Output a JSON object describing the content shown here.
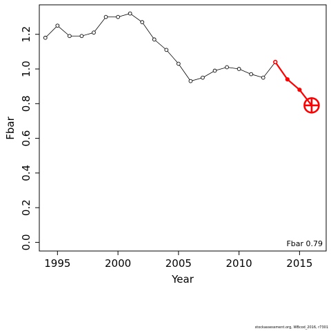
{
  "chart_data": {
    "type": "line",
    "title": "",
    "xlabel": "Year",
    "ylabel": "Fbar",
    "xlim": [
      1993.5,
      2017.2
    ],
    "ylim": [
      -0.05,
      1.37
    ],
    "x_ticks": [
      1995,
      2000,
      2005,
      2010,
      2015
    ],
    "y_ticks": [
      0.0,
      0.2,
      0.4,
      0.6,
      0.8,
      1.0,
      1.2
    ],
    "y_tick_labels": [
      "0.0",
      "0.2",
      "0.4",
      "0.6",
      "0.8",
      "1.0",
      "1.2"
    ],
    "grid": false,
    "annotation": "Fbar 0.79",
    "series": [
      {
        "color": "#000000",
        "style": "line-with-open-circles",
        "x": [
          1994,
          1995,
          1996,
          1997,
          1998,
          1999,
          2000,
          2001,
          2002,
          2003,
          2004,
          2005,
          2006,
          2007,
          2008,
          2009,
          2010,
          2011,
          2012,
          2013
        ],
        "y": [
          1.18,
          1.25,
          1.19,
          1.19,
          1.21,
          1.3,
          1.3,
          1.32,
          1.27,
          1.17,
          1.11,
          1.03,
          0.93,
          0.95,
          0.99,
          1.01,
          1.0,
          0.97,
          0.95,
          1.04
        ]
      },
      {
        "color": "#ff0000",
        "style": "projection",
        "x": [
          2013,
          2014,
          2015,
          2016
        ],
        "y": [
          1.04,
          0.94,
          0.88,
          0.79
        ]
      }
    ],
    "highlight_point": {
      "x": 2016,
      "y": 0.79,
      "color": "#ff0000",
      "marker": "circled-plus"
    }
  },
  "footer": {
    "credit": "stockassessment.org, WBcod_2016, r7301"
  }
}
